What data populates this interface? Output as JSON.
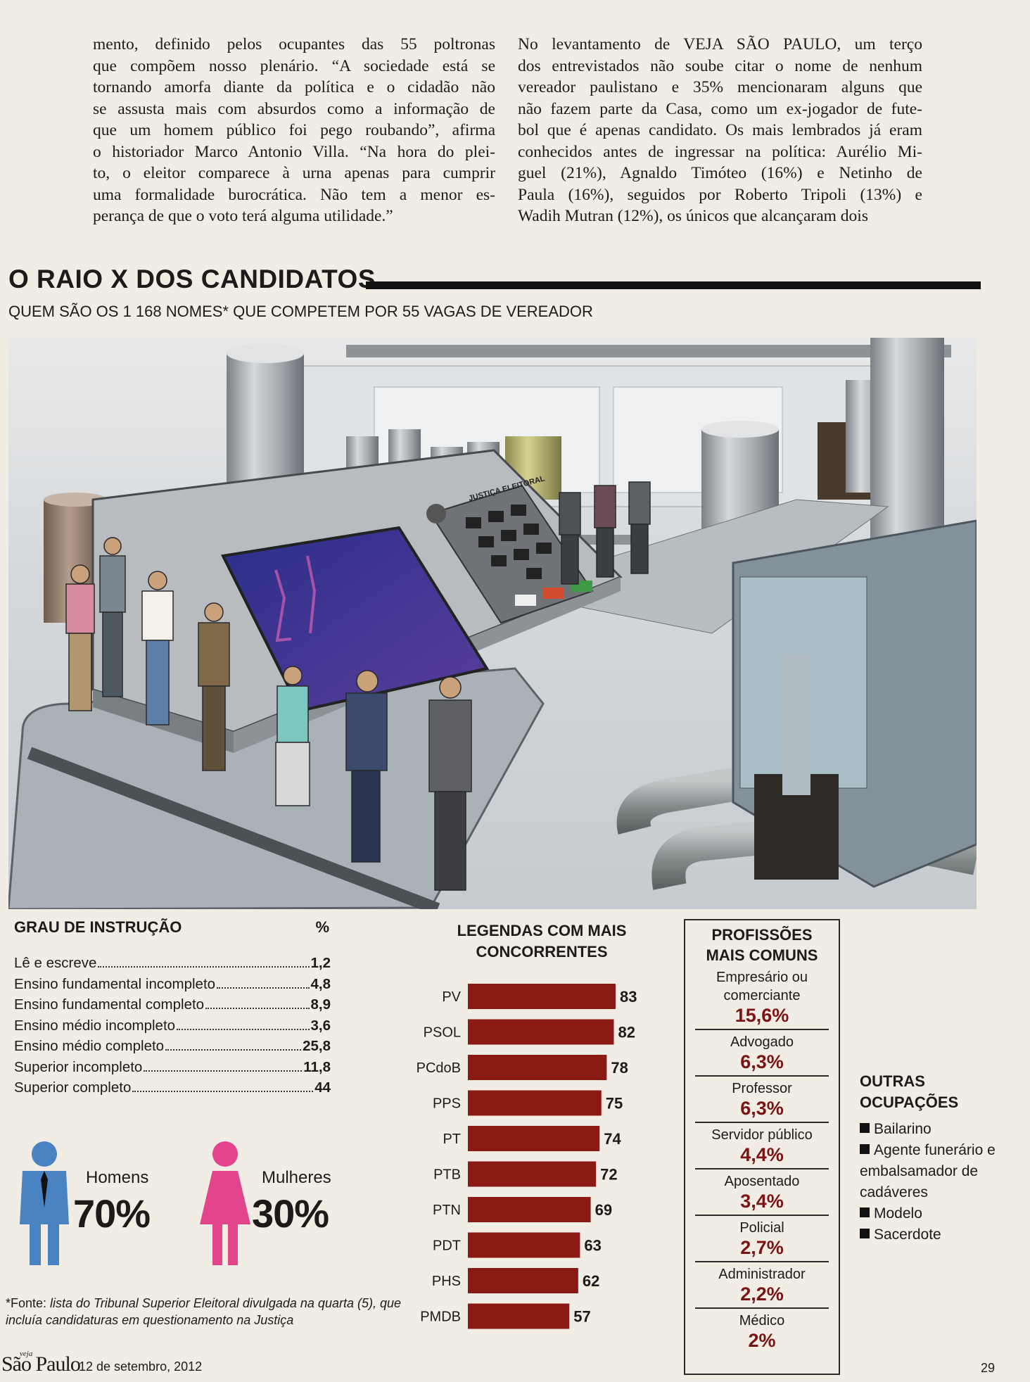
{
  "article": {
    "col1": [
      "mento, definido pelos ocupantes das 55 poltronas",
      "que compõem nosso plenário. “A sociedade está se",
      "tornando amorfa diante da política e o cidadão não",
      "se assusta mais com absurdos como a informação de",
      "que um homem público foi pego roubando”, afirma",
      "o historiador Marco Antonio Villa. “Na hora do plei-",
      "to, o eleitor comparece à urna apenas para cumprir",
      "uma formalidade burocrática. Não tem a menor es-",
      "perança de que o voto terá alguma utilidade.”"
    ],
    "col2": [
      "No levantamento de VEJA SÃO PAULO, um terço",
      "dos entrevistados não soube citar o nome de nenhum",
      "vereador paulistano e 35% mencionaram alguns que",
      "não fazem parte da Casa, como um ex-jogador de fute-",
      "bol que é apenas candidato. Os mais lembrados já eram",
      "conhecidos antes de ingressar na política: Aurélio Mi-",
      "guel (21%), Agnaldo Timóteo (16%) e Netinho de",
      "Paula (16%), seguidos por Roberto Tripoli (13%) e",
      "Wadih Mutran (12%), os únicos que alcançaram dois"
    ]
  },
  "headline": "O RAIO X DOS CANDIDATOS",
  "subhead": "QUEM SÃO OS 1 168 NOMES* QUE COMPETEM POR 55 VAGAS DE VEREADOR",
  "illustration": {
    "machine_label": "JUSTIÇA ELEITORAL"
  },
  "education": {
    "title": "GRAU DE INSTRUÇÃO",
    "unit": "%",
    "rows": [
      {
        "label": "Lê e escreve",
        "value": "1,2"
      },
      {
        "label": "Ensino fundamental incompleto",
        "value": "4,8"
      },
      {
        "label": "Ensino fundamental completo",
        "value": "8,9"
      },
      {
        "label": "Ensino médio incompleto",
        "value": "3,6"
      },
      {
        "label": "Ensino médio completo",
        "value": "25,8"
      },
      {
        "label": "Superior incompleto",
        "value": "11,8"
      },
      {
        "label": "Superior completo",
        "value": "44"
      }
    ]
  },
  "gender": {
    "men_label": "Homens",
    "men_value": "70%",
    "women_label": "Mulheres",
    "women_value": "30%",
    "men_color": "#4a83c2",
    "women_color": "#e2458c"
  },
  "source": {
    "lead": "*Fonte:",
    "body": " lista do Tribunal Superior Eleitoral divulgada na quarta (5), que incluía candidaturas em questionamento na Justiça"
  },
  "parties": {
    "title_line1": "LEGENDAS COM MAIS",
    "title_line2": "CONCORRENTES"
  },
  "chart_data": {
    "type": "bar",
    "orientation": "horizontal",
    "title": "LEGENDAS COM MAIS CONCORRENTES",
    "categories": [
      "PV",
      "PSOL",
      "PCdoB",
      "PPS",
      "PT",
      "PTB",
      "PTN",
      "PDT",
      "PHS",
      "PMDB"
    ],
    "values": [
      83,
      82,
      78,
      75,
      74,
      72,
      69,
      63,
      62,
      57
    ],
    "xlim": [
      0,
      83
    ],
    "bar_color": "#8b1a14",
    "grid": false
  },
  "professions": {
    "title_line1": "PROFISSÕES",
    "title_line2": "MAIS COMUNS",
    "items": [
      {
        "name": "Empresário ou comerciante",
        "value": "15,6%"
      },
      {
        "name": "Advogado",
        "value": "6,3%"
      },
      {
        "name": "Professor",
        "value": "6,3%"
      },
      {
        "name": "Servidor público",
        "value": "4,4%"
      },
      {
        "name": "Aposentado",
        "value": "3,4%"
      },
      {
        "name": "Policial",
        "value": "2,7%"
      },
      {
        "name": "Administrador",
        "value": "2,2%"
      },
      {
        "name": "Médico",
        "value": "2%"
      }
    ],
    "value_color": "#7a1414"
  },
  "other_occupations": {
    "title_line1": "OUTRAS",
    "title_line2": "OCUPAÇÕES",
    "items": [
      "Bailarino",
      "Agente funerário e embalsamador de cadáveres",
      "Modelo",
      "Sacerdote"
    ]
  },
  "footer": {
    "logo": "São Paulo",
    "logo_tag": "veja",
    "date": "12 de setembro, 2012",
    "page": "29"
  }
}
